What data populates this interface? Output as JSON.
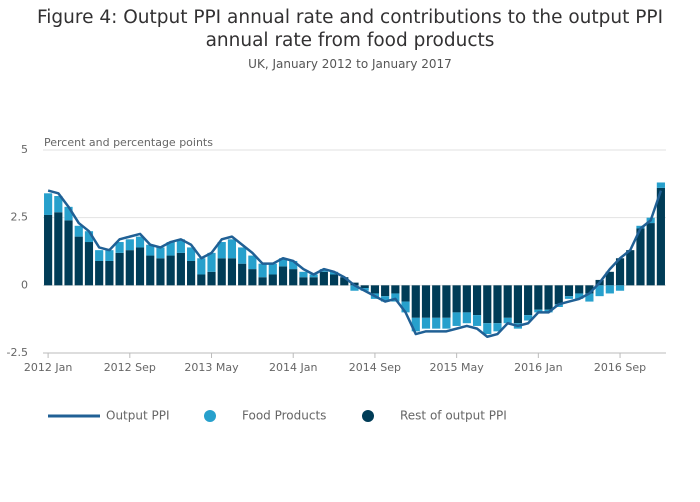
{
  "chart_data": {
    "type": "bar",
    "stacked": true,
    "title": "Figure 4: Output PPI annual rate and contributions to the output PPI annual rate from food products",
    "subtitle": "UK, January 2012 to January 2017",
    "y_axis_label": "Percent and percentage points",
    "categories": [
      "2012 Jan",
      null,
      null,
      null,
      null,
      null,
      null,
      null,
      "2012 Sep",
      null,
      null,
      null,
      null,
      null,
      null,
      null,
      "2013 May",
      null,
      null,
      null,
      null,
      null,
      null,
      null,
      "2014 Jan",
      null,
      null,
      null,
      null,
      null,
      null,
      null,
      "2014 Sep",
      null,
      null,
      null,
      null,
      null,
      null,
      null,
      "2015 May",
      null,
      null,
      null,
      null,
      null,
      null,
      null,
      "2016 Jan",
      null,
      null,
      null,
      null,
      null,
      null,
      null,
      "2016 Sep",
      null,
      null,
      null,
      null
    ],
    "ylim": [
      -2.5,
      5
    ],
    "yticks": [
      -2.5,
      0,
      2.5,
      5
    ],
    "grid": true,
    "series": [
      {
        "name": "Output PPI",
        "type": "line",
        "color": "#206095",
        "values": [
          3.5,
          3.4,
          2.9,
          2.3,
          2.0,
          1.4,
          1.3,
          1.7,
          1.8,
          1.9,
          1.5,
          1.4,
          1.6,
          1.7,
          1.5,
          1.0,
          1.2,
          1.7,
          1.8,
          1.5,
          1.2,
          0.8,
          0.8,
          1.0,
          0.9,
          0.6,
          0.4,
          0.6,
          0.5,
          0.3,
          0.0,
          -0.2,
          -0.4,
          -0.6,
          -0.5,
          -1.0,
          -1.8,
          -1.7,
          -1.7,
          -1.7,
          -1.6,
          -1.5,
          -1.6,
          -1.9,
          -1.8,
          -1.4,
          -1.5,
          -1.4,
          -1.0,
          -1.0,
          -0.7,
          -0.6,
          -0.5,
          -0.3,
          0.1,
          0.6,
          1.0,
          1.3,
          2.1,
          2.4,
          3.5
        ]
      },
      {
        "name": "Food Products",
        "type": "bar",
        "color": "#27a0cc",
        "values": [
          0.8,
          0.6,
          0.5,
          0.4,
          0.4,
          0.4,
          0.4,
          0.4,
          0.4,
          0.4,
          0.4,
          0.4,
          0.5,
          0.5,
          0.5,
          0.6,
          0.7,
          0.6,
          0.7,
          0.6,
          0.5,
          0.5,
          0.4,
          0.3,
          0.3,
          0.2,
          0.1,
          0.1,
          0.1,
          0.0,
          -0.2,
          -0.1,
          -0.2,
          -0.2,
          -0.3,
          -0.4,
          -0.5,
          -0.4,
          -0.4,
          -0.4,
          -0.5,
          -0.4,
          -0.4,
          -0.4,
          -0.3,
          -0.2,
          -0.2,
          -0.2,
          -0.1,
          -0.1,
          -0.1,
          -0.1,
          -0.2,
          -0.3,
          -0.4,
          -0.3,
          -0.2,
          0.0,
          0.1,
          0.2,
          0.2
        ]
      },
      {
        "name": "Rest of output PPI",
        "type": "bar",
        "color": "#003c57",
        "values": [
          2.6,
          2.7,
          2.4,
          1.8,
          1.6,
          0.9,
          0.9,
          1.2,
          1.3,
          1.4,
          1.1,
          1.0,
          1.1,
          1.2,
          0.9,
          0.4,
          0.5,
          1.0,
          1.0,
          0.8,
          0.6,
          0.3,
          0.4,
          0.7,
          0.6,
          0.3,
          0.3,
          0.5,
          0.4,
          0.3,
          0.1,
          -0.1,
          -0.3,
          -0.4,
          -0.3,
          -0.6,
          -1.2,
          -1.2,
          -1.2,
          -1.2,
          -1.0,
          -1.0,
          -1.1,
          -1.4,
          -1.4,
          -1.2,
          -1.4,
          -1.1,
          -0.9,
          -0.9,
          -0.7,
          -0.4,
          -0.3,
          -0.3,
          0.2,
          0.5,
          1.0,
          1.3,
          2.1,
          2.3,
          3.6
        ]
      }
    ]
  }
}
